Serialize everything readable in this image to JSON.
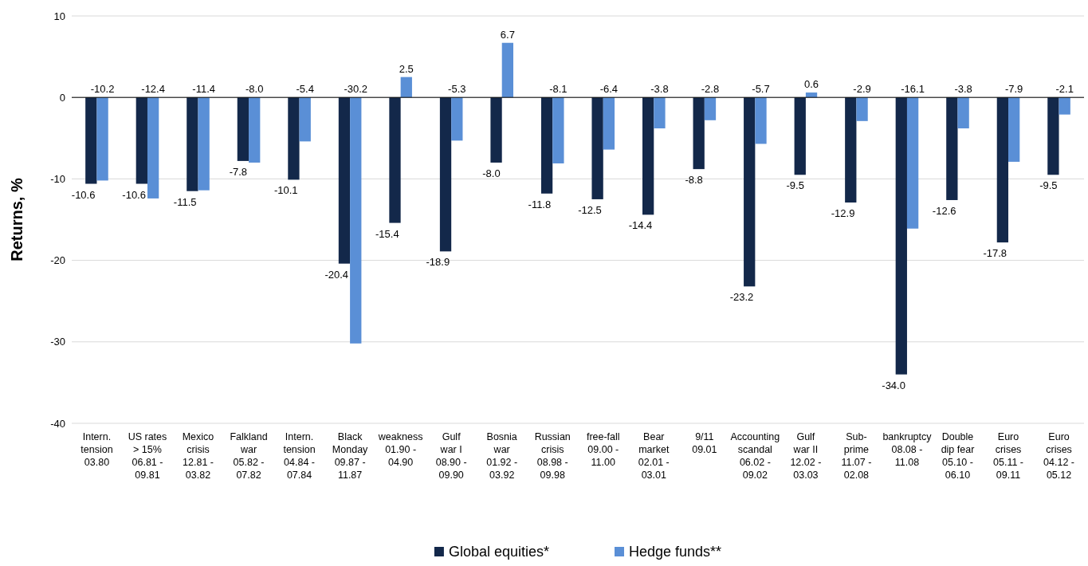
{
  "chart_data": {
    "type": "bar",
    "ylabel": "Returns, %",
    "categories": [
      "Intern.\ntension\n03.80",
      "US rates\n> 15%\n06.81 -\n09.81",
      "Mexico\ncrisis\n12.81 -\n03.82",
      "Falkland\nwar\n05.82 -\n07.82",
      "Intern.\ntension\n04.84 -\n07.84",
      "Black\nMonday\n09.87 -\n11.87",
      "weakness\n01.90 -\n04.90",
      "Gulf\nwar I\n08.90 -\n09.90",
      "Bosnia\nwar\n01.92 -\n03.92",
      "Russian\ncrisis\n08.98 -\n09.98",
      "free-fall\n09.00 -\n11.00",
      "Bear\nmarket\n02.01 -\n03.01",
      "9/11\n\n09.01",
      "Accounting\nscandal\n06.02 -\n09.02",
      "Gulf\nwar II\n12.02 -\n03.03",
      "Sub-\nprime\n11.07 -\n02.08",
      "bankruptcy\n08.08 -\n11.08",
      "Double\ndip fear\n05.10 -\n06.10",
      "Euro\ncrises\n05.11 -\n09.11",
      "Euro\ncrises\n04.12 -\n05.12"
    ],
    "series": [
      {
        "name": "Global equities*",
        "color": "#13284a",
        "values": [
          -10.6,
          -10.6,
          -11.5,
          -7.8,
          -10.1,
          -20.4,
          -15.4,
          -18.9,
          -8.0,
          -11.8,
          -12.5,
          -14.4,
          -8.8,
          -23.2,
          -9.5,
          -12.9,
          -34.0,
          -12.6,
          -17.8,
          -9.5
        ],
        "value_labels": [
          "-10.6",
          "-10.6",
          "-11.5",
          "-7.8",
          "-10.1",
          "-20.4",
          "-15.4",
          "-18.9",
          "-8.0",
          "-11.8",
          "-12.5",
          "-14.4",
          "-8.8",
          "-23.2",
          "-9.5",
          "-12.9",
          "-34.0",
          "-12.6",
          "-17.8",
          "-9.5"
        ]
      },
      {
        "name": "Hedge funds**",
        "color": "#5a8fd6",
        "values": [
          -10.2,
          -12.4,
          -11.4,
          -8.0,
          -5.4,
          -30.2,
          2.5,
          -5.3,
          6.7,
          -8.1,
          -6.4,
          -3.8,
          -2.8,
          -5.7,
          0.6,
          -2.9,
          -16.1,
          -3.8,
          -7.9,
          -2.1
        ],
        "value_labels": [
          "-10.2",
          "-12.4",
          "-11.4",
          "-8.0",
          "-5.4",
          "-30.2",
          "2.5",
          "-5.3",
          "6.7",
          "-8.1",
          "-6.4",
          "-3.8",
          "-2.8",
          "-5.7",
          "0.6",
          "-2.9",
          "-16.1",
          "-3.8",
          "-7.9",
          "-2.1"
        ]
      }
    ],
    "ylim": [
      -40,
      10
    ],
    "yticks": [
      -40,
      -30,
      -20,
      -10,
      0,
      10
    ],
    "grid": "y",
    "legend": "bottom"
  }
}
